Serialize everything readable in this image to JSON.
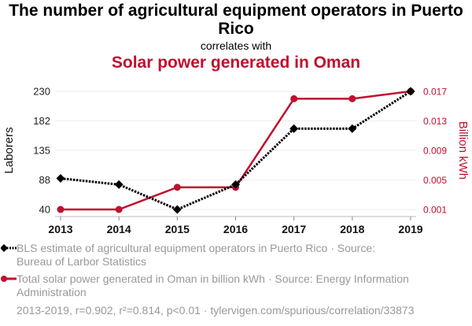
{
  "header": {
    "title": "The number of agricultural equipment operators in Puerto Rico",
    "connector": "correlates with",
    "subtitle": "Solar power generated in Oman"
  },
  "colors": {
    "series1": "#000000",
    "series2": "#c0102e",
    "muted": "#999999"
  },
  "chart_data": {
    "type": "line",
    "x": [
      "2013",
      "2014",
      "2015",
      "2016",
      "2017",
      "2018",
      "2019"
    ],
    "series": [
      {
        "name": "BLS estimate of agricultural equipment operators in Puerto Rico",
        "axis": "left",
        "style": "dotted-diamond",
        "values": [
          90,
          80,
          40,
          80,
          170,
          170,
          230
        ]
      },
      {
        "name": "Total solar power generated in Oman in billion kWh",
        "axis": "right",
        "style": "solid-circle",
        "values": [
          0.001,
          0.001,
          0.004,
          0.004,
          0.016,
          0.016,
          0.017
        ]
      }
    ],
    "ylabel": "Laborers",
    "ylabel_right": "Billion kWh",
    "yticks": [
      "40",
      "88",
      "135",
      "182",
      "230"
    ],
    "yticks_right": [
      "0.001",
      "0.005",
      "0.009",
      "0.013",
      "0.017"
    ],
    "ylim": [
      40,
      230
    ],
    "ylim_right": [
      0.001,
      0.017
    ],
    "grid": true
  },
  "legend": {
    "series1": "BLS estimate of agricultural equipment operators in Puerto Rico · Source: Bureau of Larbor Statistics",
    "series2": "Total solar power generated in Oman in billion kWh · Source: Energy Information Administration"
  },
  "footer": "2013-2019, r=0.902, r²=0.814, p<0.01 · tylervigen.com/spurious/correlation/33873"
}
